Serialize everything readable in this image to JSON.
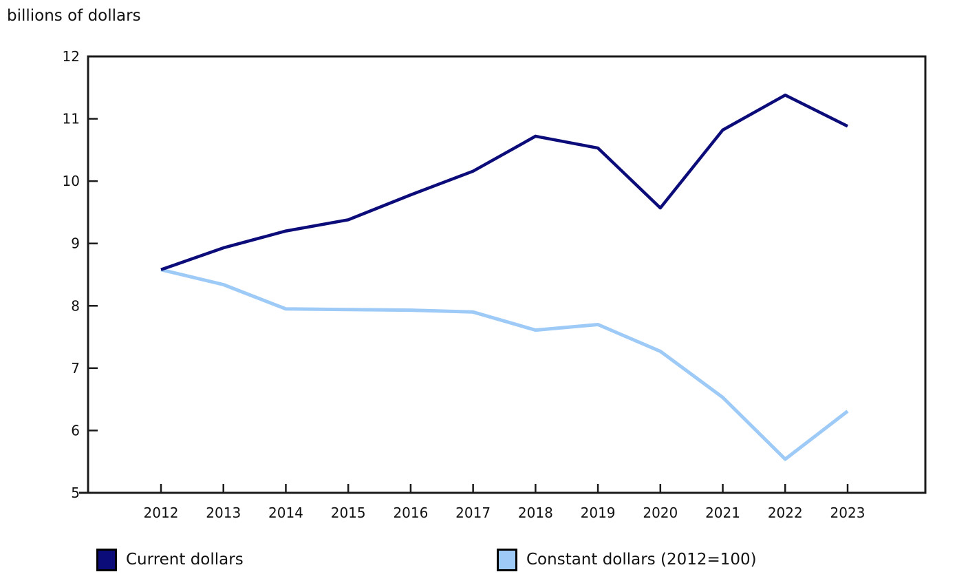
{
  "chart_data": {
    "type": "line",
    "title": "billions of dollars",
    "ylabel": "billions of dollars",
    "xlabel": "",
    "x": [
      2012,
      2013,
      2014,
      2015,
      2016,
      2017,
      2018,
      2019,
      2020,
      2021,
      2022,
      2023
    ],
    "series": [
      {
        "name": "Current dollars",
        "color": "#0B0B79",
        "values": [
          8.58,
          8.93,
          9.2,
          9.38,
          9.78,
          10.16,
          10.72,
          10.53,
          9.57,
          10.82,
          11.38,
          10.88
        ]
      },
      {
        "name": "Constant dollars (2012=100)",
        "color": "#9DCAF6",
        "values": [
          8.58,
          8.34,
          7.95,
          7.94,
          7.93,
          7.9,
          7.61,
          7.7,
          7.27,
          6.53,
          5.54,
          6.31
        ]
      }
    ],
    "ylim": [
      5,
      12
    ],
    "yticks": [
      5,
      6,
      7,
      8,
      9,
      10,
      11,
      12
    ],
    "grid": false,
    "legend_position": "bottom",
    "axis_color": "#1a1a1a"
  }
}
